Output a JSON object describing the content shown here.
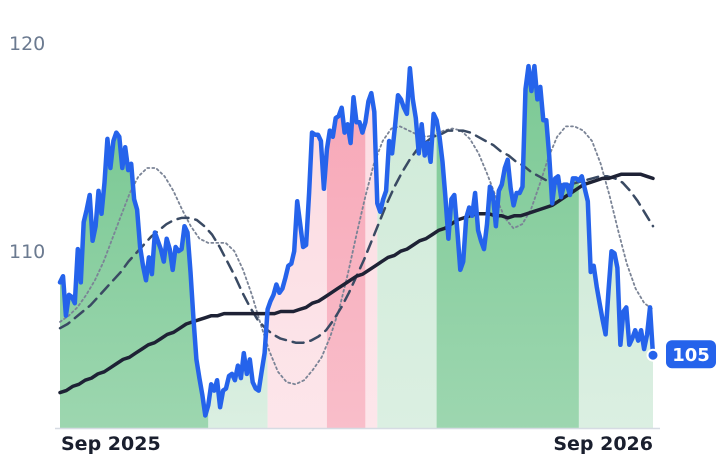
{
  "chart_data": {
    "type": "line",
    "x_labels": [
      "Sep 2025",
      "Sep 2026"
    ],
    "y_ticks": [
      110,
      120
    ],
    "ylim": [
      101.5,
      121.5
    ],
    "grid": false,
    "last_value_label": "105",
    "colors": {
      "price": "#2563eb",
      "long_ma": "#1e2235",
      "ma_dashed": "#3a4a63",
      "ma_dotted": "#7b8496",
      "up_area": "#7cc995",
      "up_area_light": "#cfead8",
      "down_area": "#f7a8b8",
      "down_area_light": "#fcdde3",
      "badge": "#2563eb"
    },
    "series": [
      {
        "style": "price",
        "values": [
          108.5,
          108.8,
          106.9,
          107.9,
          107.8,
          107.5,
          110.1,
          108.5,
          111.4,
          112.0,
          112.7,
          110.5,
          111.2,
          112.9,
          111.8,
          113.3,
          115.4,
          114.0,
          115.3,
          115.7,
          115.5,
          114.0,
          115.0,
          113.9,
          114.2,
          112.5,
          112.0,
          110.2,
          109.3,
          108.6,
          109.7,
          108.9,
          110.9,
          110.5,
          110.1,
          109.5,
          110.6,
          110.1,
          109.1,
          110.2,
          110.0,
          110.1,
          111.2,
          110.9,
          109.0,
          106.8,
          104.8,
          103.9,
          103.1,
          102.1,
          102.6,
          103.6,
          103.3,
          103.8,
          102.5,
          103.3,
          103.4,
          104.0,
          104.1,
          103.8,
          104.5,
          103.9,
          105.1,
          104.1,
          104.8,
          103.7,
          103.4,
          103.3,
          104.2,
          105.1,
          107.2,
          107.6,
          107.9,
          108.4,
          108.0,
          108.2,
          108.7,
          109.3,
          109.4,
          110.0,
          112.4,
          111.3,
          110.2,
          110.3,
          112.8,
          115.7,
          115.6,
          115.6,
          115.3,
          113.0,
          114.9,
          115.8,
          115.5,
          116.4,
          116.5,
          116.9,
          115.7,
          116.1,
          115.2,
          117.4,
          116.2,
          116.2,
          115.7,
          116.2,
          117.2,
          117.6,
          116.7,
          112.3,
          111.9,
          112.5,
          112.9,
          115.3,
          114.7,
          116.0,
          117.5,
          117.3,
          116.9,
          116.6,
          118.8,
          117.3,
          116.4,
          114.7,
          116.1,
          114.6,
          115.2,
          114.3,
          116.6,
          116.3,
          115.5,
          114.3,
          112.6,
          110.6,
          112.5,
          112.7,
          111.0,
          109.1,
          109.5,
          111.6,
          112.1,
          111.7,
          112.8,
          111.0,
          110.5,
          110.1,
          111.3,
          113.1,
          112.7,
          111.2,
          112.9,
          113.2,
          114.0,
          114.4,
          113.0,
          112.2,
          112.8,
          112.8,
          113.1,
          117.8,
          118.9,
          117.7,
          118.9,
          117.3,
          117.9,
          116.3,
          116.3,
          114.6,
          112.3,
          113.5,
          113.6,
          112.6,
          113.2,
          113.2,
          112.7,
          113.5,
          113.5,
          113.4,
          113.6,
          113.0,
          112.4,
          109.0,
          109.3,
          108.3,
          107.5,
          106.7,
          106.0,
          108.1,
          110.0,
          109.9,
          109.2,
          105.5,
          107.1,
          107.3,
          105.5,
          105.8,
          106.2,
          105.7,
          106.2,
          105.3,
          106.0,
          107.3,
          105.0
        ],
        "annotation_values": [
          108.5,
          108.8,
          106.9,
          107.9,
          107.8,
          107.5,
          110.1,
          108.5,
          111.4,
          112.0,
          112.7,
          110.5,
          111.2,
          112.9,
          111.8,
          113.3,
          115.4,
          114.0,
          115.3,
          115.7,
          115.5,
          114.0,
          115.0,
          113.9,
          114.2,
          112.5,
          112.0,
          110.2,
          109.3,
          108.6,
          109.7,
          108.9,
          110.9,
          110.5,
          110.1,
          109.5,
          110.6,
          110.1,
          109.1,
          110.2,
          110.0,
          110.1,
          111.2,
          110.9,
          109.0,
          106.8,
          104.8,
          103.9,
          103.1,
          102.1,
          102.6,
          103.6,
          103.3,
          103.8,
          102.5,
          103.3,
          103.4,
          104.0,
          104.1,
          103.8,
          104.5,
          103.9,
          105.1,
          104.1,
          104.8,
          103.7,
          103.4,
          103.3,
          104.2,
          105.1,
          107.2,
          107.6,
          107.9,
          108.4,
          108.0,
          108.2,
          108.7,
          109.3,
          109.4,
          110.0,
          112.4,
          111.3,
          110.2,
          110.3,
          112.8,
          115.7,
          115.6,
          115.6,
          115.3,
          113.0,
          114.9,
          115.8,
          115.5,
          116.4,
          116.5,
          116.9,
          115.7,
          116.1,
          115.2,
          117.4,
          116.2,
          116.2,
          115.7,
          116.2,
          117.2,
          117.6,
          116.7,
          112.3,
          111.9,
          112.5,
          112.9,
          115.3,
          114.7,
          116.0,
          117.5,
          117.3,
          116.9,
          116.6,
          118.8,
          117.3,
          116.4,
          114.7,
          116.1,
          114.6,
          115.2,
          114.3,
          116.6,
          116.3,
          115.5,
          114.3,
          112.6,
          110.6,
          112.5,
          112.7,
          111.0,
          109.1,
          109.5,
          111.6,
          112.1,
          111.7,
          112.8,
          111.0,
          110.5,
          110.1,
          111.3,
          113.1,
          112.7,
          111.2,
          112.9,
          113.2,
          114.0,
          114.4,
          113.0,
          112.2,
          112.8,
          112.8,
          113.1,
          117.8,
          118.9,
          117.7,
          118.9,
          117.3,
          117.9,
          116.3,
          116.3,
          114.6,
          112.3,
          113.5,
          113.6,
          112.6,
          113.2,
          113.2,
          112.7,
          113.5,
          113.5,
          113.4,
          113.6,
          113.0,
          112.4,
          109.0,
          109.3,
          108.3,
          107.5,
          106.7,
          106.0,
          108.1,
          110.0,
          109.9,
          109.2,
          105.5,
          107.1,
          107.3,
          105.5,
          105.8,
          106.2,
          105.7,
          106.2,
          105.3,
          106.0,
          107.3,
          105.0
        ]
      },
      {
        "style": "long_ma",
        "values": [
          103.2,
          103.3,
          103.5,
          103.6,
          103.8,
          103.9,
          104.1,
          104.2,
          104.4,
          104.6,
          104.8,
          104.9,
          105.1,
          105.3,
          105.5,
          105.6,
          105.8,
          106.0,
          106.1,
          106.3,
          106.5,
          106.6,
          106.7,
          106.8,
          106.9,
          106.9,
          107.0,
          107.0,
          107.0,
          107.0,
          107.0,
          107.0,
          107.0,
          107.0,
          107.0,
          107.1,
          107.1,
          107.1,
          107.2,
          107.3,
          107.5,
          107.6,
          107.8,
          108.0,
          108.2,
          108.4,
          108.6,
          108.8,
          108.9,
          109.1,
          109.3,
          109.5,
          109.7,
          109.8,
          110.0,
          110.1,
          110.3,
          110.5,
          110.6,
          110.8,
          111.0,
          111.1,
          111.3,
          111.5,
          111.6,
          111.7,
          111.8,
          111.8,
          111.8,
          111.7,
          111.7,
          111.6,
          111.7,
          111.7,
          111.8,
          111.9,
          112.0,
          112.1,
          112.2,
          112.4,
          112.6,
          112.8,
          113.0,
          113.2,
          113.3,
          113.4,
          113.5,
          113.5,
          113.6,
          113.7,
          113.7,
          113.7,
          113.7,
          113.6,
          113.5
        ]
      },
      {
        "style": "ma_dashed",
        "values": [
          106.3,
          106.5,
          106.8,
          107.1,
          107.4,
          107.8,
          108.2,
          108.6,
          109.0,
          109.5,
          109.9,
          110.3,
          110.7,
          111.0,
          111.3,
          111.5,
          111.6,
          111.6,
          111.5,
          111.2,
          110.8,
          110.2,
          109.5,
          108.8,
          108.0,
          107.3,
          106.7,
          106.3,
          106.0,
          105.8,
          105.7,
          105.6,
          105.6,
          105.7,
          105.9,
          106.2,
          106.7,
          107.3,
          108.0,
          108.8,
          109.6,
          110.5,
          111.4,
          112.3,
          113.1,
          113.8,
          114.4,
          114.9,
          115.2,
          115.5,
          115.6,
          115.8,
          115.8,
          115.8,
          115.7,
          115.5,
          115.3,
          115.1,
          114.8,
          114.6,
          114.3,
          114.1,
          113.8,
          113.6,
          113.4,
          113.3,
          113.2,
          113.2,
          113.3,
          113.4,
          113.5,
          113.6,
          113.6,
          113.5,
          113.3,
          112.9,
          112.4,
          111.8,
          111.2
        ]
      },
      {
        "style": "ma_dotted",
        "values": [
          106.6,
          106.9,
          107.3,
          107.9,
          108.6,
          109.5,
          110.6,
          111.7,
          112.8,
          113.6,
          114.0,
          114.0,
          113.6,
          112.9,
          112.0,
          111.2,
          110.6,
          110.4,
          110.4,
          110.4,
          110.0,
          109.1,
          107.9,
          106.5,
          105.2,
          104.2,
          103.7,
          103.6,
          103.8,
          104.3,
          104.9,
          105.9,
          107.2,
          108.9,
          110.8,
          112.6,
          114.2,
          115.3,
          115.9,
          116.0,
          115.8,
          115.6,
          115.5,
          115.6,
          115.8,
          115.9,
          115.8,
          115.4,
          114.7,
          113.7,
          112.6,
          111.6,
          111.1,
          111.3,
          112.0,
          113.2,
          114.5,
          115.5,
          116.0,
          116.0,
          115.8,
          115.3,
          114.2,
          112.7,
          111.0,
          109.4,
          108.2,
          107.5,
          107.2
        ]
      }
    ],
    "regions": [
      {
        "from": 0,
        "to": 50,
        "tone": "up"
      },
      {
        "from": 50,
        "to": 70,
        "tone": "up_light"
      },
      {
        "from": 70,
        "to": 90,
        "tone": "down_light"
      },
      {
        "from": 90,
        "to": 103,
        "tone": "down"
      },
      {
        "from": 103,
        "to": 107,
        "tone": "down_light"
      },
      {
        "from": 107,
        "to": 127,
        "tone": "up_light"
      },
      {
        "from": 127,
        "to": 175,
        "tone": "up"
      },
      {
        "from": 175,
        "to": 214,
        "tone": "up_light"
      },
      {
        "from": 214,
        "to": 241,
        "tone": "up"
      },
      {
        "from": 241,
        "to": 246,
        "tone": "down_light"
      },
      {
        "from": 246,
        "to": 269,
        "tone": "down"
      }
    ]
  }
}
